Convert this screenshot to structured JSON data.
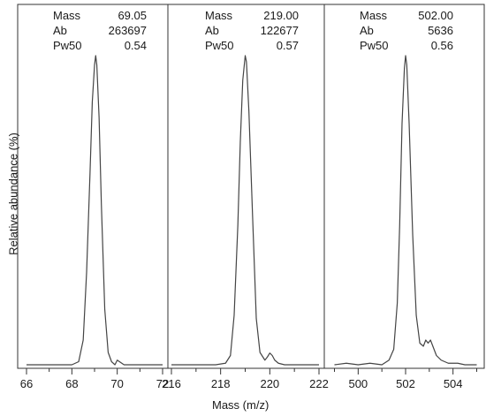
{
  "chart_data": {
    "type": "line",
    "xlabel": "Mass (m/z)",
    "ylabel": "Relative abundance (%)",
    "ylim": [
      0,
      100
    ],
    "grid": false,
    "panels": [
      {
        "xlim": [
          66,
          72
        ],
        "ticks": [
          66,
          68,
          70,
          72
        ],
        "annotation": {
          "mass_label": "Mass",
          "mass": "69.05",
          "ab_label": "Ab",
          "ab": "263697",
          "pw_label": "Pw50",
          "pw": "0.54"
        },
        "x": [
          66.0,
          68.0,
          68.3,
          68.5,
          68.65,
          68.8,
          68.9,
          69.0,
          69.05,
          69.1,
          69.2,
          69.3,
          69.45,
          69.6,
          69.75,
          69.9,
          70.0,
          70.1,
          70.3,
          70.6,
          72.0
        ],
        "y": [
          0,
          0,
          1,
          8,
          30,
          62,
          85,
          97,
          100,
          97,
          80,
          52,
          18,
          4,
          1,
          0,
          1.5,
          1,
          0,
          0,
          0
        ]
      },
      {
        "xlim": [
          216,
          222
        ],
        "ticks": [
          216,
          218,
          220,
          222
        ],
        "annotation": {
          "mass_label": "Mass",
          "mass": "219.00",
          "ab_label": "Ab",
          "ab": "122677",
          "pw_label": "Pw50",
          "pw": "0.57"
        },
        "x": [
          216.0,
          217.8,
          218.2,
          218.4,
          218.55,
          218.7,
          218.8,
          218.9,
          219.0,
          219.05,
          219.15,
          219.3,
          219.45,
          219.6,
          219.8,
          219.9,
          220.0,
          220.1,
          220.2,
          220.35,
          220.6,
          222.0
        ],
        "y": [
          0,
          0,
          0.5,
          3,
          16,
          45,
          72,
          92,
          100,
          98,
          82,
          48,
          15,
          4,
          1.5,
          2.5,
          3.8,
          3,
          1.5,
          0.5,
          0,
          0
        ]
      },
      {
        "xlim": [
          499,
          505
        ],
        "ticks": [
          500,
          502,
          504
        ],
        "annotation": {
          "mass_label": "Mass",
          "mass": "502.00",
          "ab_label": "Ab",
          "ab": "5636",
          "pw_label": "Pw50",
          "pw": "0.56"
        },
        "x": [
          499.0,
          499.5,
          500.0,
          500.5,
          501.0,
          501.3,
          501.5,
          501.65,
          501.75,
          501.85,
          501.95,
          502.0,
          502.05,
          502.15,
          502.3,
          502.45,
          502.6,
          502.75,
          502.85,
          502.95,
          503.05,
          503.15,
          503.3,
          503.5,
          503.8,
          504.2,
          504.5,
          505.0
        ],
        "y": [
          0,
          0.5,
          0,
          0.5,
          0,
          1.5,
          5,
          20,
          45,
          78,
          96,
          100,
          97,
          78,
          42,
          16,
          7,
          6,
          8,
          7,
          8,
          6,
          3,
          1.5,
          0.5,
          0.5,
          0,
          0
        ]
      }
    ]
  }
}
